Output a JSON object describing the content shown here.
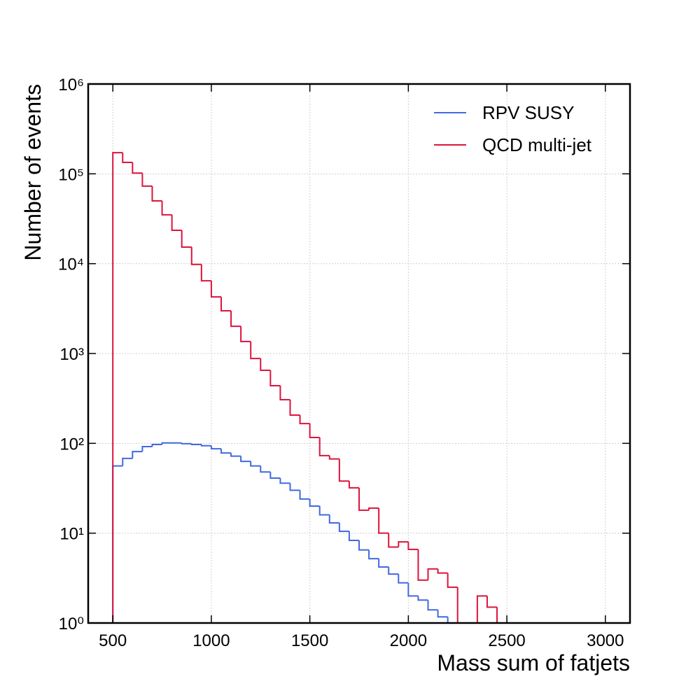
{
  "chart_data": {
    "type": "histogram",
    "xlabel": "Mass sum of fatjets",
    "ylabel": "Number of events",
    "log_y": true,
    "grid": true,
    "legend_loc": "upper right",
    "bins": [
      500,
      550,
      600,
      650,
      700,
      750,
      800,
      850,
      900,
      950,
      1000,
      1050,
      1100,
      1150,
      1200,
      1250,
      1300,
      1350,
      1400,
      1450,
      1500,
      1550,
      1600,
      1650,
      1700,
      1750,
      1800,
      1850,
      1900,
      1950,
      2000,
      2050,
      2100,
      2150,
      2200,
      2250,
      2300,
      2350,
      2400,
      2450,
      2500,
      2550,
      2600,
      2650,
      2700,
      2750,
      2800,
      2850,
      2900,
      2950,
      3000
    ],
    "series": [
      {
        "name": "RPV SUSY",
        "color": "#4169e1",
        "values": [
          56,
          68,
          81,
          92,
          97,
          101,
          101,
          99,
          97,
          94,
          87,
          78,
          72,
          63,
          56,
          48,
          41,
          36,
          30,
          24,
          20,
          16,
          13,
          10.5,
          8.3,
          6.5,
          5.2,
          4.2,
          3.5,
          2.8,
          2.0,
          1.8,
          1.4,
          1.17,
          1.0,
          0,
          0,
          0,
          0,
          0,
          0,
          0,
          0,
          0,
          0,
          0,
          0,
          0,
          0,
          0
        ]
      },
      {
        "name": "QCD multi-jet",
        "color": "#dc143c",
        "values": [
          172000,
          134000,
          102000,
          73000,
          50000,
          35000,
          23500,
          15300,
          9800,
          6450,
          4270,
          2990,
          2010,
          1360,
          880,
          650,
          438,
          306,
          206,
          166,
          116,
          73,
          67,
          38,
          32,
          18,
          19,
          10,
          7,
          8,
          6.6,
          3,
          4,
          3.6,
          2.5,
          0,
          0,
          2,
          1.5,
          0,
          0,
          0,
          0,
          0,
          0,
          0,
          0,
          0,
          0,
          0
        ]
      }
    ],
    "xlim": [
      375,
      3125
    ],
    "ylim": [
      1,
      1000000
    ],
    "xticks": [
      500,
      1000,
      1500,
      2000,
      2500,
      3000
    ],
    "yticks": [
      {
        "value": 1,
        "label": "10⁰"
      },
      {
        "value": 10,
        "label": "10¹"
      },
      {
        "value": 100,
        "label": "10²"
      },
      {
        "value": 1000,
        "label": "10³"
      },
      {
        "value": 10000,
        "label": "10⁴"
      },
      {
        "value": 100000,
        "label": "10⁵"
      },
      {
        "value": 1000000,
        "label": "10⁶"
      }
    ]
  }
}
